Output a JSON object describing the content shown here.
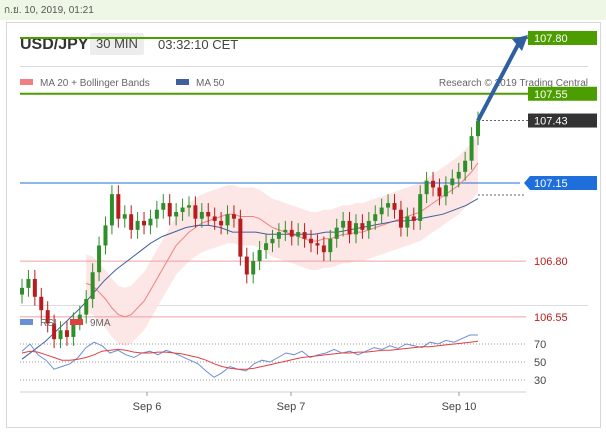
{
  "header": {
    "datetime": "ก.ย. 10, 2019, 01:21",
    "symbol": "USD/JPY",
    "timeframe": "30 MIN",
    "time": "03:32:10 CET"
  },
  "legend": {
    "ma20_label": "MA 20 + Bollinger Bands",
    "ma50_label": "MA 50",
    "credit": "Research © 2019 Trading Central"
  },
  "colors": {
    "up_candle": "#2f8f2a",
    "down_candle": "#b81c1c",
    "ma20": "#f08080",
    "bollinger_fill": "#fde3e3",
    "ma50": "#3f5f9e",
    "target_green": "#4c9e00",
    "pivot_blue": "#1e6fdc",
    "support_red": "#f0a0a0",
    "current_price": "#333333",
    "rsi": "#6b8fd6",
    "rsi_ma": "#e04040"
  },
  "chart_data": [
    {
      "type": "candlestick",
      "symbol": "USD/JPY",
      "timeframe": "30 MIN",
      "x_ticks": [
        "Sep 6",
        "Sep 7",
        "Sep 10"
      ],
      "y_range": [
        106.25,
        107.95
      ],
      "levels": [
        {
          "label": "107.80",
          "value": 107.8,
          "kind": "resistance"
        },
        {
          "label": "107.55",
          "value": 107.55,
          "kind": "resistance"
        },
        {
          "label": "107.43",
          "value": 107.43,
          "kind": "current"
        },
        {
          "label": "107.15",
          "value": 107.15,
          "kind": "pivot"
        },
        {
          "label": "106.80",
          "value": 106.8,
          "kind": "support"
        },
        {
          "label": "106.55",
          "value": 106.55,
          "kind": "support"
        }
      ],
      "closes": [
        106.68,
        106.72,
        106.64,
        106.58,
        106.52,
        106.45,
        106.49,
        106.46,
        106.53,
        106.56,
        106.63,
        106.75,
        106.87,
        106.96,
        107.1,
        106.99,
        107.01,
        106.94,
        106.98,
        106.96,
        106.99,
        107.03,
        107.06,
        107.0,
        107.02,
        107.04,
        107.05,
        106.99,
        107.02,
        107.0,
        106.98,
        106.96,
        107.01,
        106.99,
        106.82,
        106.74,
        106.8,
        106.85,
        106.88,
        106.9,
        106.93,
        106.94,
        106.91,
        106.93,
        106.9,
        106.88,
        106.87,
        106.84,
        106.9,
        106.95,
        106.98,
        106.92,
        106.97,
        106.94,
        106.98,
        107.01,
        107.04,
        107.06,
        107.03,
        106.95,
        107.0,
        106.98,
        107.1,
        107.16,
        107.13,
        107.09,
        107.14,
        107.17,
        107.2,
        107.25,
        107.36,
        107.43
      ],
      "ma20": [
        106.7,
        106.69,
        106.66,
        106.63,
        106.59,
        106.56,
        106.55,
        106.56,
        106.59,
        106.62,
        106.67,
        106.72,
        106.77,
        106.82,
        106.87,
        106.9,
        106.93,
        106.95,
        106.97,
        106.98,
        106.99,
        107.0,
        107.01,
        107.01,
        107.0,
        107.0,
        107.0,
        106.99,
        106.97,
        106.95,
        106.94,
        106.93,
        106.92,
        106.91,
        106.9,
        106.89,
        106.89,
        106.9,
        106.9,
        106.91,
        106.92,
        106.92,
        106.93,
        106.93,
        106.94,
        106.95,
        106.96,
        106.97,
        106.98,
        106.99,
        107.0,
        107.01,
        107.02,
        107.04,
        107.06,
        107.08,
        107.1,
        107.12,
        107.14,
        107.17,
        107.2,
        107.24
      ],
      "ma50": [
        106.36,
        106.4,
        106.44,
        106.49,
        106.54,
        106.59,
        106.65,
        106.71,
        106.76,
        106.8,
        106.84,
        106.88,
        106.91,
        106.93,
        106.95,
        106.96,
        106.96,
        106.95,
        106.93,
        106.93,
        106.93,
        106.92,
        106.92,
        106.92,
        106.92,
        106.92,
        106.93,
        106.93,
        106.94,
        106.95,
        106.96,
        106.97,
        106.98,
        106.98,
        106.99,
        107.0,
        107.01,
        107.03,
        107.05,
        107.08
      ],
      "projection": {
        "from": 107.43,
        "to": 107.8
      }
    },
    {
      "type": "line",
      "name": "RSI",
      "y_ticks": [
        70,
        50,
        30
      ],
      "y_range": [
        20,
        85
      ],
      "series": [
        {
          "name": "RSI",
          "values": [
            62,
            70,
            58,
            52,
            42,
            45,
            48,
            55,
            66,
            72,
            68,
            60,
            63,
            58,
            55,
            60,
            62,
            58,
            63,
            60,
            56,
            52,
            48,
            40,
            33,
            38,
            45,
            42,
            40,
            48,
            52,
            50,
            55,
            60,
            58,
            62,
            55,
            58,
            60,
            64,
            60,
            62,
            58,
            62,
            66,
            64,
            68,
            65,
            70,
            68,
            66,
            72,
            70,
            74,
            72,
            76,
            80,
            80
          ]
        },
        {
          "name": "9MA",
          "values": [
            60,
            62,
            61,
            58,
            55,
            52,
            52,
            53,
            55,
            58,
            62,
            63,
            64,
            63,
            61,
            60,
            60,
            61,
            61,
            60,
            59,
            57,
            55,
            52,
            48,
            45,
            43,
            42,
            42,
            43,
            45,
            47,
            49,
            51,
            53,
            55,
            56,
            57,
            58,
            59,
            60,
            60,
            61,
            61,
            62,
            63,
            63,
            64,
            65,
            66,
            67,
            67,
            68,
            69,
            70,
            71,
            72,
            73
          ]
        }
      ]
    }
  ]
}
